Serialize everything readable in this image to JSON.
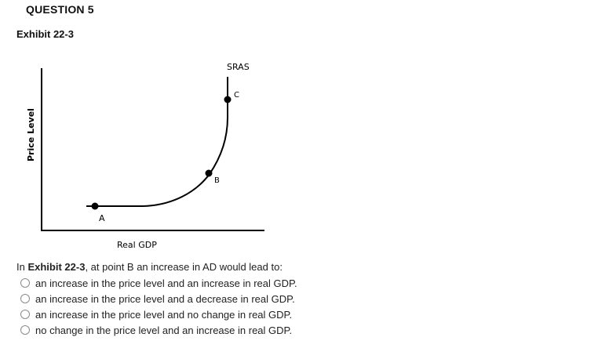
{
  "question": {
    "title": "QUESTION 5",
    "exhibit_title": "Exhibit 22-3",
    "prompt_prefix": "In ",
    "prompt_ref": "Exhibit 22-3",
    "prompt_suffix": ", at point B an increase in AD would lead to:",
    "options": [
      "an increase in the price level and an increase in real GDP.",
      "an increase in the price level and a decrease in real GDP.",
      "an increase in the price level and no change in real GDP.",
      "no change in the price level and an increase in real GDP."
    ]
  },
  "graph": {
    "y_axis_label": "Price Level",
    "x_axis_label": "Real GDP",
    "curve_label": "SRAS",
    "points": [
      "A",
      "B",
      "C"
    ]
  }
}
